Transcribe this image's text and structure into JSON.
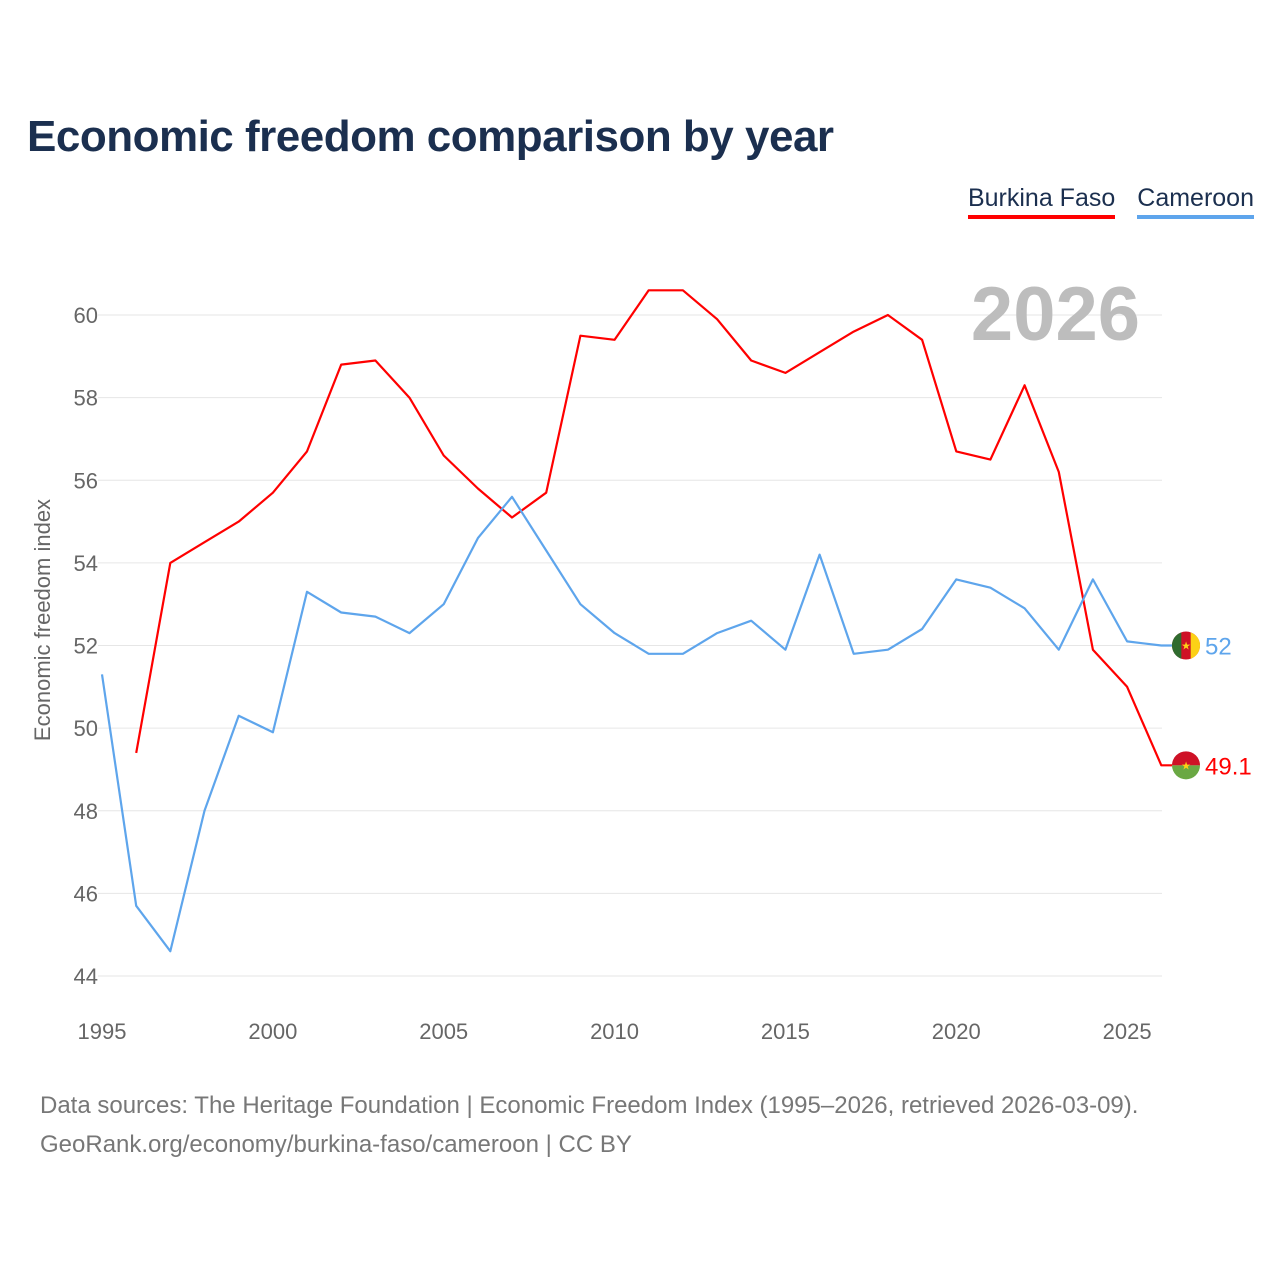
{
  "title": "Economic freedom comparison by year",
  "legend": [
    "Burkina Faso",
    "Cameroon"
  ],
  "footer": {
    "line1": "Data sources: The Heritage Foundation | Economic Freedom Index (1995–2026, retrieved 2026-03-09).",
    "line2": "GeoRank.org/economy/burkina-faso/cameroon | CC BY"
  },
  "chart_data": {
    "type": "line",
    "title": "Economic freedom comparison by year",
    "ylabel": "Economic freedom index",
    "xlabel": "",
    "year_label": "2026",
    "xlim": [
      1995,
      2026
    ],
    "ylim": [
      44,
      61
    ],
    "xticks": [
      1995,
      2000,
      2005,
      2010,
      2015,
      2020,
      2025
    ],
    "yticks": [
      44,
      46,
      48,
      50,
      52,
      54,
      56,
      58,
      60
    ],
    "grid": true,
    "legend_position": "top-right",
    "series": [
      {
        "name": "Burkina Faso",
        "color": "#ff0000",
        "end_label": "49.1",
        "x": [
          1996,
          1997,
          1998,
          1999,
          2000,
          2001,
          2002,
          2003,
          2004,
          2005,
          2006,
          2007,
          2008,
          2009,
          2010,
          2011,
          2012,
          2013,
          2014,
          2015,
          2016,
          2017,
          2018,
          2019,
          2020,
          2021,
          2022,
          2023,
          2024,
          2025,
          2026
        ],
        "values": [
          49.4,
          54.0,
          54.5,
          55.0,
          55.7,
          56.7,
          58.8,
          58.9,
          58.0,
          56.6,
          55.8,
          55.1,
          55.7,
          59.5,
          59.4,
          60.6,
          60.6,
          59.9,
          58.9,
          58.6,
          59.1,
          59.6,
          60.0,
          59.4,
          56.7,
          56.5,
          58.3,
          56.2,
          51.9,
          51.0,
          49.1
        ]
      },
      {
        "name": "Cameroon",
        "color": "#5ea5ec",
        "end_label": "52",
        "x": [
          1995,
          1996,
          1997,
          1998,
          1999,
          2000,
          2001,
          2002,
          2003,
          2004,
          2005,
          2006,
          2007,
          2008,
          2009,
          2010,
          2011,
          2012,
          2013,
          2014,
          2015,
          2016,
          2017,
          2018,
          2019,
          2020,
          2021,
          2022,
          2023,
          2024,
          2025,
          2026
        ],
        "values": [
          51.3,
          45.7,
          44.6,
          48.0,
          50.3,
          49.9,
          53.3,
          52.8,
          52.7,
          52.3,
          53.0,
          54.6,
          55.6,
          54.3,
          53.0,
          52.3,
          51.8,
          51.8,
          52.3,
          52.6,
          51.9,
          54.2,
          51.8,
          51.9,
          52.4,
          53.6,
          53.4,
          52.9,
          51.9,
          53.6,
          52.1,
          52.0
        ]
      }
    ]
  }
}
